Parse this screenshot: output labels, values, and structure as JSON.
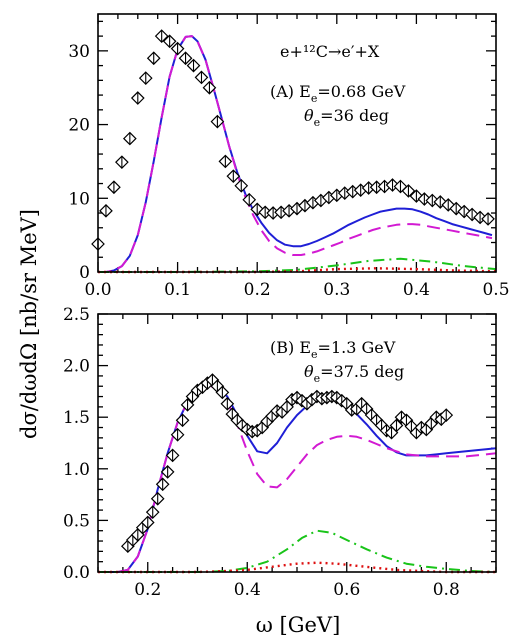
{
  "figure": {
    "ylabel": "dσ/dωdΩ [nb/sr MeV]",
    "xlabel": "ω [GeV]"
  },
  "chart_data": [
    {
      "id": "A",
      "type": "line",
      "annotations": {
        "reaction": "e+¹²C→e′+X",
        "label": "(A) E",
        "label_sub": "e",
        "label_value": "=0.68 GeV",
        "theta": "θ",
        "theta_sub": "e",
        "theta_value": "=36 deg"
      },
      "xlim": [
        0.0,
        0.5
      ],
      "ylim": [
        0,
        35
      ],
      "x_ticks": [
        0.0,
        0.1,
        0.2,
        0.3,
        0.4,
        0.5
      ],
      "x_tick_labels": [
        "0.0",
        "0.1",
        "0.2",
        "0.3",
        "0.4",
        "0.5"
      ],
      "y_ticks": [
        0,
        10,
        20,
        30
      ],
      "y_tick_labels": [
        "0",
        "10",
        "20",
        "30"
      ],
      "series": [
        {
          "style": "solid",
          "color": "#1f1fd6",
          "x": [
            0.0,
            0.01,
            0.02,
            0.03,
            0.04,
            0.05,
            0.06,
            0.07,
            0.08,
            0.09,
            0.1,
            0.11,
            0.118,
            0.125,
            0.135,
            0.145,
            0.155,
            0.165,
            0.175,
            0.185,
            0.195,
            0.205,
            0.215,
            0.225,
            0.235,
            0.245,
            0.255,
            0.265,
            0.275,
            0.285,
            0.295,
            0.305,
            0.315,
            0.325,
            0.335,
            0.345,
            0.355,
            0.365,
            0.375,
            0.385,
            0.395,
            0.405,
            0.415,
            0.425,
            0.435,
            0.445,
            0.455,
            0.465,
            0.475,
            0.485,
            0.495
          ],
          "y": [
            0.0,
            0.0,
            0.2,
            0.8,
            2.2,
            5.0,
            9.5,
            15.0,
            21.0,
            26.5,
            30.2,
            31.9,
            32.0,
            31.3,
            28.8,
            25.0,
            21.0,
            17.0,
            13.5,
            10.6,
            8.4,
            6.7,
            5.3,
            4.3,
            3.7,
            3.5,
            3.5,
            3.8,
            4.2,
            4.7,
            5.2,
            5.8,
            6.4,
            6.9,
            7.4,
            7.8,
            8.2,
            8.4,
            8.6,
            8.6,
            8.5,
            8.2,
            7.8,
            7.3,
            6.9,
            6.5,
            6.2,
            5.9,
            5.6,
            5.3,
            5.0
          ]
        },
        {
          "style": "dashed",
          "color": "#d21ad2",
          "x": [
            0.0,
            0.01,
            0.02,
            0.03,
            0.04,
            0.05,
            0.06,
            0.07,
            0.08,
            0.09,
            0.1,
            0.11,
            0.118,
            0.125,
            0.135,
            0.145,
            0.155,
            0.165,
            0.175,
            0.185,
            0.195,
            0.205,
            0.215,
            0.225,
            0.235,
            0.245,
            0.255,
            0.265,
            0.275,
            0.285,
            0.295,
            0.305,
            0.315,
            0.325,
            0.335,
            0.345,
            0.355,
            0.365,
            0.375,
            0.385,
            0.395,
            0.405,
            0.415,
            0.425,
            0.435,
            0.445,
            0.455,
            0.465,
            0.475,
            0.485,
            0.495
          ],
          "y": [
            0.0,
            0.0,
            0.2,
            0.8,
            2.2,
            5.0,
            9.5,
            15.0,
            21.0,
            26.5,
            30.2,
            31.9,
            32.0,
            31.3,
            28.8,
            25.0,
            21.0,
            17.0,
            13.3,
            10.2,
            7.7,
            5.7,
            4.2,
            3.2,
            2.6,
            2.3,
            2.3,
            2.5,
            2.8,
            3.2,
            3.6,
            4.0,
            4.5,
            4.9,
            5.3,
            5.7,
            6.0,
            6.2,
            6.4,
            6.5,
            6.5,
            6.4,
            6.2,
            6.0,
            5.8,
            5.6,
            5.4,
            5.2,
            5.0,
            4.8,
            4.6
          ]
        },
        {
          "style": "dashdot",
          "color": "#19c419",
          "x": [
            0.0,
            0.1,
            0.2,
            0.25,
            0.3,
            0.34,
            0.38,
            0.42,
            0.46,
            0.5
          ],
          "y": [
            0.0,
            0.0,
            0.1,
            0.3,
            0.9,
            1.5,
            1.8,
            1.4,
            0.8,
            0.4
          ]
        },
        {
          "style": "dotted",
          "color": "#dd1111",
          "x": [
            0.0,
            0.2,
            0.25,
            0.3,
            0.35,
            0.4,
            0.45,
            0.5
          ],
          "y": [
            0.0,
            0.0,
            0.1,
            0.4,
            0.5,
            0.4,
            0.2,
            0.1
          ]
        }
      ],
      "points": {
        "marker": "diamond",
        "x": [
          0.0,
          0.01,
          0.02,
          0.03,
          0.04,
          0.05,
          0.06,
          0.07,
          0.08,
          0.09,
          0.1,
          0.11,
          0.12,
          0.13,
          0.14,
          0.15,
          0.16,
          0.17,
          0.18,
          0.19,
          0.2,
          0.21,
          0.22,
          0.23,
          0.24,
          0.25,
          0.26,
          0.27,
          0.28,
          0.29,
          0.3,
          0.31,
          0.32,
          0.33,
          0.34,
          0.35,
          0.36,
          0.37,
          0.38,
          0.39,
          0.4,
          0.41,
          0.42,
          0.43,
          0.44,
          0.45,
          0.46,
          0.47,
          0.48,
          0.49
        ],
        "y": [
          3.8,
          8.3,
          11.5,
          14.9,
          18.1,
          23.6,
          26.3,
          29.0,
          32.0,
          31.3,
          30.3,
          29.0,
          28.0,
          26.4,
          25.0,
          20.4,
          15.0,
          13.0,
          11.7,
          9.8,
          8.5,
          8.1,
          8.0,
          8.1,
          8.3,
          8.6,
          9.0,
          9.4,
          9.7,
          10.1,
          10.4,
          10.7,
          10.9,
          11.1,
          11.4,
          11.5,
          11.6,
          11.8,
          11.6,
          11.0,
          10.3,
          9.9,
          9.7,
          9.5,
          9.1,
          8.6,
          8.2,
          7.8,
          7.4,
          7.2
        ]
      }
    },
    {
      "id": "B",
      "type": "line",
      "annotations": {
        "label": "(B) E",
        "label_sub": "e",
        "label_value": "=1.3 GeV",
        "theta": "θ",
        "theta_sub": "e",
        "theta_value": "=37.5 deg"
      },
      "xlim": [
        0.1,
        0.9
      ],
      "ylim": [
        0.0,
        2.5
      ],
      "x_ticks": [
        0.2,
        0.4,
        0.6,
        0.8
      ],
      "x_tick_labels": [
        "0.2",
        "0.4",
        "0.6",
        "0.8"
      ],
      "y_ticks": [
        0.0,
        0.5,
        1.0,
        1.5,
        2.0,
        2.5
      ],
      "y_tick_labels": [
        "0.0",
        "0.5",
        "1.0",
        "1.5",
        "2.0",
        "2.5"
      ],
      "series": [
        {
          "style": "solid",
          "color": "#1f1fd6",
          "x": [
            0.1,
            0.14,
            0.16,
            0.18,
            0.2,
            0.22,
            0.24,
            0.26,
            0.28,
            0.3,
            0.32,
            0.34,
            0.36,
            0.38,
            0.4,
            0.42,
            0.44,
            0.46,
            0.48,
            0.5,
            0.52,
            0.54,
            0.56,
            0.58,
            0.6,
            0.62,
            0.64,
            0.66,
            0.68,
            0.7,
            0.72,
            0.74,
            0.76,
            0.78,
            0.8,
            0.82,
            0.84,
            0.86,
            0.88,
            0.9
          ],
          "y": [
            0.0,
            0.0,
            0.02,
            0.15,
            0.42,
            0.8,
            1.15,
            1.45,
            1.65,
            1.77,
            1.82,
            1.8,
            1.7,
            1.52,
            1.32,
            1.17,
            1.15,
            1.25,
            1.4,
            1.52,
            1.61,
            1.66,
            1.67,
            1.66,
            1.61,
            1.53,
            1.43,
            1.32,
            1.22,
            1.16,
            1.13,
            1.13,
            1.13,
            1.14,
            1.15,
            1.16,
            1.17,
            1.18,
            1.19,
            1.2
          ]
        },
        {
          "style": "dashed",
          "color": "#d21ad2",
          "x": [
            0.1,
            0.14,
            0.16,
            0.18,
            0.2,
            0.22,
            0.24,
            0.26,
            0.28,
            0.3,
            0.32,
            0.34,
            0.36,
            0.38,
            0.4,
            0.42,
            0.44,
            0.46,
            0.48,
            0.5,
            0.52,
            0.54,
            0.56,
            0.58,
            0.6,
            0.62,
            0.64,
            0.66,
            0.68,
            0.7,
            0.72,
            0.74,
            0.76,
            0.78,
            0.8,
            0.82,
            0.84,
            0.86,
            0.88,
            0.9
          ],
          "y": [
            0.0,
            0.0,
            0.02,
            0.15,
            0.42,
            0.8,
            1.15,
            1.45,
            1.65,
            1.77,
            1.81,
            1.78,
            1.65,
            1.43,
            1.17,
            0.95,
            0.83,
            0.82,
            0.9,
            1.02,
            1.14,
            1.23,
            1.28,
            1.31,
            1.32,
            1.31,
            1.28,
            1.24,
            1.2,
            1.17,
            1.14,
            1.13,
            1.12,
            1.12,
            1.12,
            1.12,
            1.12,
            1.13,
            1.14,
            1.15
          ]
        },
        {
          "style": "dashdot",
          "color": "#19c419",
          "x": [
            0.1,
            0.3,
            0.36,
            0.4,
            0.44,
            0.48,
            0.51,
            0.54,
            0.57,
            0.6,
            0.64,
            0.68,
            0.72,
            0.76,
            0.8,
            0.85,
            0.9
          ],
          "y": [
            0.0,
            0.0,
            0.01,
            0.04,
            0.1,
            0.22,
            0.33,
            0.4,
            0.38,
            0.31,
            0.22,
            0.14,
            0.08,
            0.05,
            0.03,
            0.01,
            0.0
          ]
        },
        {
          "style": "dotted",
          "color": "#dd1111",
          "x": [
            0.1,
            0.3,
            0.36,
            0.4,
            0.45,
            0.5,
            0.54,
            0.58,
            0.62,
            0.66,
            0.7,
            0.75,
            0.8,
            0.9
          ],
          "y": [
            0.0,
            0.0,
            0.01,
            0.02,
            0.05,
            0.08,
            0.09,
            0.08,
            0.06,
            0.04,
            0.02,
            0.01,
            0.0,
            0.0
          ]
        }
      ],
      "points": {
        "marker": "diamond",
        "x": [
          0.16,
          0.17,
          0.18,
          0.19,
          0.2,
          0.21,
          0.22,
          0.23,
          0.24,
          0.25,
          0.26,
          0.27,
          0.28,
          0.29,
          0.3,
          0.31,
          0.32,
          0.33,
          0.34,
          0.35,
          0.36,
          0.37,
          0.38,
          0.39,
          0.4,
          0.41,
          0.42,
          0.43,
          0.44,
          0.45,
          0.46,
          0.47,
          0.48,
          0.49,
          0.5,
          0.51,
          0.52,
          0.53,
          0.54,
          0.55,
          0.56,
          0.57,
          0.58,
          0.59,
          0.6,
          0.61,
          0.62,
          0.63,
          0.64,
          0.65,
          0.66,
          0.67,
          0.68,
          0.69,
          0.7,
          0.71,
          0.72,
          0.73,
          0.74,
          0.75,
          0.76,
          0.77,
          0.78,
          0.79,
          0.8
        ],
        "y": [
          0.25,
          0.31,
          0.36,
          0.43,
          0.48,
          0.58,
          0.71,
          0.85,
          0.97,
          1.13,
          1.33,
          1.47,
          1.62,
          1.7,
          1.76,
          1.79,
          1.83,
          1.86,
          1.8,
          1.74,
          1.63,
          1.53,
          1.47,
          1.42,
          1.38,
          1.36,
          1.37,
          1.4,
          1.46,
          1.51,
          1.56,
          1.55,
          1.6,
          1.67,
          1.69,
          1.66,
          1.63,
          1.67,
          1.7,
          1.68,
          1.69,
          1.7,
          1.69,
          1.66,
          1.63,
          1.57,
          1.58,
          1.63,
          1.58,
          1.52,
          1.47,
          1.42,
          1.37,
          1.35,
          1.42,
          1.5,
          1.47,
          1.41,
          1.35,
          1.4,
          1.38,
          1.44,
          1.5,
          1.48,
          1.52
        ]
      }
    }
  ]
}
